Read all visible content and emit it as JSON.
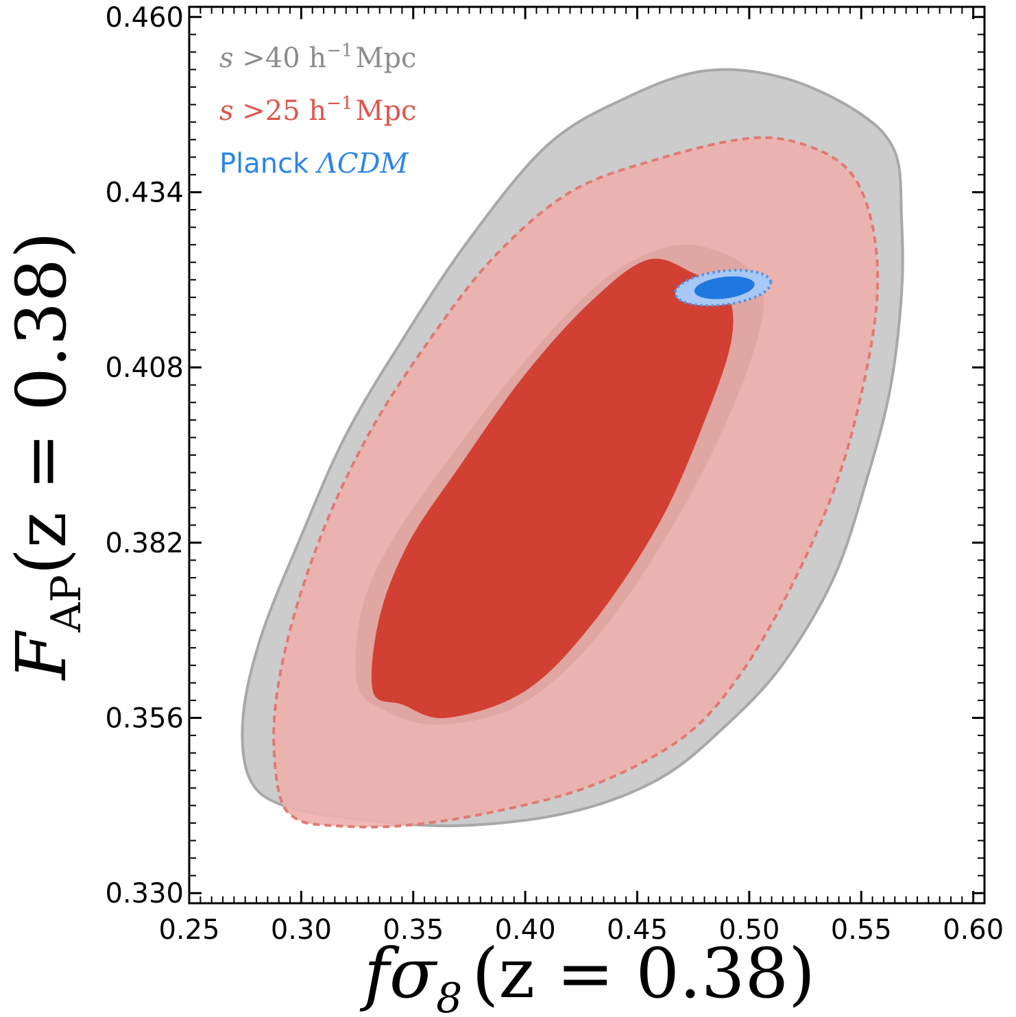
{
  "chart_data": {
    "type": "contour",
    "xlabel": "fσ8 (z = 0.38)",
    "ylabel": "FAP (z = 0.38)",
    "xlim": [
      0.25,
      0.605
    ],
    "ylim": [
      0.3285,
      0.4615
    ],
    "xticks": [
      0.25,
      0.3,
      0.35,
      0.4,
      0.45,
      0.5,
      0.55,
      0.6
    ],
    "xtick_labels": [
      "0.25",
      "0.30",
      "0.35",
      "0.40",
      "0.45",
      "0.50",
      "0.55",
      "0.60"
    ],
    "yticks": [
      0.33,
      0.356,
      0.382,
      0.408,
      0.434,
      0.46
    ],
    "ytick_labels": [
      "0.330",
      "0.356",
      "0.382",
      "0.408",
      "0.434",
      "0.460"
    ],
    "series": [
      {
        "name": "s >40 h⁻¹ Mpc",
        "color": "#8c8c8c",
        "fill": "#cccccc",
        "line_style": "solid",
        "contours": [
          {
            "level": "95%",
            "points": [
              [
                0.277,
                0.347
              ],
              [
                0.274,
                0.356
              ],
              [
                0.282,
                0.368
              ],
              [
                0.3,
                0.383
              ],
              [
                0.32,
                0.398
              ],
              [
                0.345,
                0.412
              ],
              [
                0.375,
                0.427
              ],
              [
                0.41,
                0.441
              ],
              [
                0.445,
                0.448
              ],
              [
                0.48,
                0.452
              ],
              [
                0.515,
                0.451
              ],
              [
                0.548,
                0.446
              ],
              [
                0.565,
                0.44
              ],
              [
                0.568,
                0.43
              ],
              [
                0.568,
                0.419
              ],
              [
                0.563,
                0.405
              ],
              [
                0.553,
                0.392
              ],
              [
                0.538,
                0.377
              ],
              [
                0.515,
                0.364
              ],
              [
                0.49,
                0.355
              ],
              [
                0.46,
                0.347
              ],
              [
                0.42,
                0.342
              ],
              [
                0.37,
                0.34
              ],
              [
                0.325,
                0.341
              ],
              [
                0.292,
                0.343
              ]
            ]
          }
        ]
      },
      {
        "name": "s >25 h⁻¹ Mpc",
        "color": "#e07a72",
        "fill": "#edb0ac",
        "line_style": "dashed",
        "contours": [
          {
            "level": "95%",
            "points": [
              [
                0.29,
                0.345
              ],
              [
                0.288,
                0.356
              ],
              [
                0.295,
                0.369
              ],
              [
                0.31,
                0.384
              ],
              [
                0.33,
                0.398
              ],
              [
                0.355,
                0.411
              ],
              [
                0.385,
                0.424
              ],
              [
                0.42,
                0.434
              ],
              [
                0.46,
                0.439
              ],
              [
                0.5,
                0.442
              ],
              [
                0.525,
                0.441
              ],
              [
                0.545,
                0.437
              ],
              [
                0.555,
                0.429
              ],
              [
                0.557,
                0.418
              ],
              [
                0.55,
                0.404
              ],
              [
                0.538,
                0.39
              ],
              [
                0.518,
                0.375
              ],
              [
                0.495,
                0.362
              ],
              [
                0.47,
                0.353
              ],
              [
                0.43,
                0.346
              ],
              [
                0.385,
                0.342
              ],
              [
                0.345,
                0.34
              ],
              [
                0.315,
                0.34
              ],
              [
                0.298,
                0.341
              ]
            ]
          },
          {
            "level": "68%",
            "points": [
              [
                0.335,
                0.371
              ],
              [
                0.332,
                0.36
              ],
              [
                0.345,
                0.358
              ],
              [
                0.365,
                0.356
              ],
              [
                0.4,
                0.36
              ],
              [
                0.43,
                0.37
              ],
              [
                0.46,
                0.385
              ],
              [
                0.48,
                0.4
              ],
              [
                0.492,
                0.412
              ],
              [
                0.49,
                0.419
              ],
              [
                0.475,
                0.422
              ],
              [
                0.455,
                0.424
              ],
              [
                0.43,
                0.418
              ],
              [
                0.4,
                0.407
              ],
              [
                0.37,
                0.393
              ],
              [
                0.348,
                0.382
              ]
            ]
          }
        ]
      },
      {
        "name": "Planck ΛCDM",
        "color": "#1f77e0",
        "fill": "#a8c8f5",
        "line_style": "dotted",
        "ellipse": {
          "center": [
            0.4883,
            0.4198
          ],
          "axes_95": [
            0.0215,
            0.0025
          ],
          "axes_68": [
            0.0135,
            0.0016
          ],
          "angle_deg": 7
        }
      }
    ],
    "legend": {
      "placement": "top-left",
      "entries": [
        {
          "prefix": "s",
          "cond": ">40",
          "unit_h": "h",
          "unit_exp": "−1",
          "unit_mpc": "Mpc",
          "color": "#8c8c8c"
        },
        {
          "prefix": "s",
          "cond": ">25",
          "unit_h": "h",
          "unit_exp": "−1",
          "unit_mpc": "Mpc",
          "color": "#e0544c"
        },
        {
          "prefix": "Planck",
          "model": "ΛCDM",
          "color": "#2a85e8"
        }
      ]
    }
  },
  "labels": {
    "x_f": "f",
    "x_sigma": "σ",
    "x_sub": "8",
    "x_arg": "(z = 0.38)",
    "y_F": "F",
    "y_sub": "AP",
    "y_arg": "(z = 0.38)"
  }
}
